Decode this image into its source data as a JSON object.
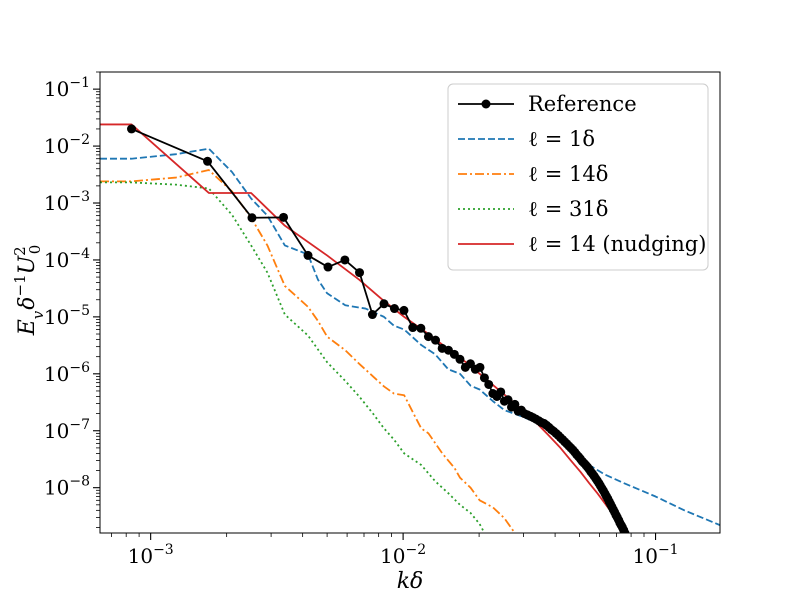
{
  "chart_data": {
    "type": "line",
    "title": "",
    "xlabel": "kδ",
    "ylabel": "E_v δ^{-1} U_0^2",
    "xscale": "log",
    "yscale": "log",
    "xlim": [
      0.00063,
      0.18
    ],
    "ylim": [
      1.6e-09,
      0.2
    ],
    "grid": false,
    "legend_position": "top-right",
    "x_ticks": [
      {
        "value": 0.001,
        "mant": "10",
        "exp": "−3"
      },
      {
        "value": 0.01,
        "mant": "10",
        "exp": "−2"
      },
      {
        "value": 0.1,
        "mant": "10",
        "exp": "−1"
      }
    ],
    "y_ticks": [
      {
        "value": 1e-08,
        "mant": "10",
        "exp": "−8"
      },
      {
        "value": 1e-07,
        "mant": "10",
        "exp": "−7"
      },
      {
        "value": 1e-06,
        "mant": "10",
        "exp": "−6"
      },
      {
        "value": 1e-05,
        "mant": "10",
        "exp": "−5"
      },
      {
        "value": 0.0001,
        "mant": "10",
        "exp": "−4"
      },
      {
        "value": 0.001,
        "mant": "10",
        "exp": "−3"
      },
      {
        "value": 0.01,
        "mant": "10",
        "exp": "−2"
      },
      {
        "value": 0.1,
        "mant": "10",
        "exp": "−1"
      }
    ],
    "series": [
      {
        "name": "Reference",
        "color": "#000000",
        "style": "solid-marker",
        "points": [
          [
            0.00084,
            0.02
          ],
          [
            0.00168,
            0.0054
          ],
          [
            0.00252,
            0.00055
          ],
          [
            0.00336,
            0.00056
          ],
          [
            0.0042,
            0.00012
          ],
          [
            0.00504,
            7.5e-05
          ],
          [
            0.00588,
            0.0001
          ],
          [
            0.00672,
            6e-05
          ],
          [
            0.00756,
            1.1e-05
          ],
          [
            0.0084,
            1.7e-05
          ],
          [
            0.00924,
            1.4e-05
          ],
          [
            0.01008,
            1.3e-05
          ],
          [
            0.01092,
            6.5e-06
          ],
          [
            0.01176,
            6.3e-06
          ],
          [
            0.0126,
            4.5e-06
          ],
          [
            0.01344,
            3.9e-06
          ],
          [
            0.01428,
            2.8e-06
          ],
          [
            0.01512,
            2.6e-06
          ],
          [
            0.01596,
            2.2e-06
          ],
          [
            0.0168,
            1.8e-06
          ],
          [
            0.01764,
            1.3e-06
          ],
          [
            0.01848,
            1.5e-06
          ],
          [
            0.01932,
            1.2e-06
          ],
          [
            0.02016,
            1.3e-06
          ],
          [
            0.021,
            8.5e-07
          ],
          [
            0.02184,
            6.5e-07
          ],
          [
            0.02268,
            4.5e-07
          ],
          [
            0.02352,
            4e-07
          ],
          [
            0.02436,
            4.8e-07
          ],
          [
            0.0252,
            3.3e-07
          ],
          [
            0.02604,
            3.5e-07
          ],
          [
            0.02688,
            2.6e-07
          ],
          [
            0.02772,
            2.9e-07
          ],
          [
            0.02856,
            2.2e-07
          ],
          [
            0.0294,
            2.3e-07
          ],
          [
            0.03024,
            2e-07
          ],
          [
            0.03108,
            1.9e-07
          ],
          [
            0.03192,
            1.8e-07
          ],
          [
            0.03276,
            1.7e-07
          ],
          [
            0.0336,
            1.6e-07
          ],
          [
            0.03444,
            1.5e-07
          ],
          [
            0.03528,
            1.4e-07
          ],
          [
            0.03612,
            1.35e-07
          ],
          [
            0.03696,
            1.25e-07
          ],
          [
            0.0378,
            1.15e-07
          ],
          [
            0.03864,
            1.05e-07
          ],
          [
            0.03948,
            9.8e-08
          ],
          [
            0.04032,
            9e-08
          ],
          [
            0.04116,
            8.3e-08
          ],
          [
            0.042,
            7.6e-08
          ],
          [
            0.04284,
            7e-08
          ],
          [
            0.04368,
            6.4e-08
          ],
          [
            0.04452,
            5.9e-08
          ],
          [
            0.04536,
            5.4e-08
          ],
          [
            0.0462,
            5e-08
          ],
          [
            0.04704,
            4.6e-08
          ],
          [
            0.04788,
            4.2e-08
          ],
          [
            0.04872,
            3.8e-08
          ],
          [
            0.04956,
            3.5e-08
          ],
          [
            0.0504,
            3.2e-08
          ],
          [
            0.05124,
            2.9e-08
          ],
          [
            0.05208,
            2.7e-08
          ],
          [
            0.05292,
            2.5e-08
          ],
          [
            0.05376,
            2.3e-08
          ],
          [
            0.0546,
            2.1e-08
          ],
          [
            0.05544,
            1.9e-08
          ],
          [
            0.05628,
            1.75e-08
          ],
          [
            0.05712,
            1.6e-08
          ],
          [
            0.05796,
            1.45e-08
          ],
          [
            0.0588,
            1.32e-08
          ],
          [
            0.05964,
            1.2e-08
          ],
          [
            0.06048,
            1.08e-08
          ],
          [
            0.06132,
            9.7e-09
          ],
          [
            0.06216,
            8.8e-09
          ],
          [
            0.063,
            7.9e-09
          ],
          [
            0.06384,
            7.1e-09
          ],
          [
            0.06468,
            6.4e-09
          ],
          [
            0.06552,
            5.7e-09
          ],
          [
            0.06636,
            5.1e-09
          ],
          [
            0.0672,
            4.6e-09
          ],
          [
            0.06804,
            4.1e-09
          ],
          [
            0.06888,
            3.7e-09
          ],
          [
            0.06972,
            3.3e-09
          ],
          [
            0.07056,
            3e-09
          ],
          [
            0.0714,
            2.7e-09
          ],
          [
            0.07224,
            2.4e-09
          ],
          [
            0.07308,
            2.2e-09
          ],
          [
            0.07392,
            2e-09
          ],
          [
            0.07476,
            1.8e-09
          ],
          [
            0.0756,
            1.6e-09
          ]
        ]
      },
      {
        "name": "ℓ = 1δ",
        "color": "#1f77b4",
        "style": "dashed",
        "points": [
          [
            0.00063,
            0.006
          ],
          [
            0.00084,
            0.006
          ],
          [
            0.00126,
            0.0072
          ],
          [
            0.0017,
            0.009
          ],
          [
            0.0021,
            0.0035
          ],
          [
            0.0025,
            0.0012
          ],
          [
            0.0029,
            0.0006
          ],
          [
            0.0034,
            0.00018
          ],
          [
            0.0042,
            0.000125
          ],
          [
            0.0046,
            4.5e-05
          ],
          [
            0.005,
            2.6e-05
          ],
          [
            0.0059,
            1.6e-05
          ],
          [
            0.0071,
            1.4e-05
          ],
          [
            0.0084,
            1e-05
          ],
          [
            0.0092,
            7e-06
          ],
          [
            0.0101,
            6e-06
          ],
          [
            0.0118,
            3.2e-06
          ],
          [
            0.0134,
            2.2e-06
          ],
          [
            0.0151,
            1.2e-06
          ],
          [
            0.0168,
            1e-06
          ],
          [
            0.0185,
            6.2e-07
          ],
          [
            0.0201,
            5.3e-07
          ],
          [
            0.0227,
            3.3e-07
          ],
          [
            0.0252,
            2.3e-07
          ],
          [
            0.0294,
            1.8e-07
          ],
          [
            0.0336,
            1.4e-07
          ],
          [
            0.0378,
            1e-07
          ],
          [
            0.042,
            7.5e-08
          ],
          [
            0.0462,
            5e-08
          ],
          [
            0.0546,
            2.5e-08
          ],
          [
            0.063,
            1.7e-08
          ],
          [
            0.075,
            1.2e-08
          ],
          [
            0.1,
            7e-09
          ],
          [
            0.13,
            4e-09
          ],
          [
            0.18,
            2.2e-09
          ]
        ]
      },
      {
        "name": "ℓ = 14δ",
        "color": "#ff7f0e",
        "style": "dashdot",
        "points": [
          [
            0.00063,
            0.0024
          ],
          [
            0.00084,
            0.0024
          ],
          [
            0.00126,
            0.0028
          ],
          [
            0.0017,
            0.0038
          ],
          [
            0.0021,
            0.0016
          ],
          [
            0.0025,
            0.00055
          ],
          [
            0.0029,
            0.00018
          ],
          [
            0.0034,
            3.5e-05
          ],
          [
            0.0042,
            1.5e-05
          ],
          [
            0.0046,
            8.5e-06
          ],
          [
            0.005,
            4.5e-06
          ],
          [
            0.0059,
            2.6e-06
          ],
          [
            0.0067,
            1.5e-06
          ],
          [
            0.0076,
            9e-07
          ],
          [
            0.0084,
            6e-07
          ],
          [
            0.0092,
            4.5e-07
          ],
          [
            0.0101,
            4.2e-07
          ],
          [
            0.011,
            2e-07
          ],
          [
            0.0118,
            1.1e-07
          ],
          [
            0.0126,
            9e-08
          ],
          [
            0.0143,
            4e-08
          ],
          [
            0.016,
            2.2e-08
          ],
          [
            0.0168,
            1.5e-08
          ],
          [
            0.0185,
            1e-08
          ],
          [
            0.0201,
            6e-09
          ],
          [
            0.0227,
            4.5e-09
          ],
          [
            0.0252,
            2.9e-09
          ],
          [
            0.0277,
            1.6e-09
          ]
        ]
      },
      {
        "name": "ℓ = 31δ",
        "color": "#2ca02c",
        "style": "dotted",
        "points": [
          [
            0.00063,
            0.0023
          ],
          [
            0.00084,
            0.0023
          ],
          [
            0.00126,
            0.0021
          ],
          [
            0.0017,
            0.0018
          ],
          [
            0.0021,
            0.00062
          ],
          [
            0.0025,
            0.00018
          ],
          [
            0.0029,
            6e-05
          ],
          [
            0.0034,
            1.1e-05
          ],
          [
            0.0042,
            4.7e-06
          ],
          [
            0.005,
            1.6e-06
          ],
          [
            0.0059,
            7.5e-07
          ],
          [
            0.0067,
            4e-07
          ],
          [
            0.0076,
            2e-07
          ],
          [
            0.0084,
            1.1e-07
          ],
          [
            0.0092,
            7e-08
          ],
          [
            0.0101,
            4e-08
          ],
          [
            0.0118,
            2.5e-08
          ],
          [
            0.0134,
            1.3e-08
          ],
          [
            0.0151,
            8e-09
          ],
          [
            0.0168,
            5e-09
          ],
          [
            0.0185,
            3.6e-09
          ],
          [
            0.0201,
            2.3e-09
          ],
          [
            0.021,
            1.6e-09
          ]
        ]
      },
      {
        "name": "ℓ = 14 (nudging)",
        "color": "#d62728",
        "style": "solid",
        "points": [
          [
            0.00063,
            0.024
          ],
          [
            0.00084,
            0.024
          ],
          [
            0.0017,
            0.0015
          ],
          [
            0.0025,
            0.0015
          ],
          [
            0.0034,
            0.0004
          ],
          [
            0.005,
            0.00012
          ],
          [
            0.0067,
            4.5e-05
          ],
          [
            0.0084,
            1.9e-05
          ],
          [
            0.0101,
            1e-05
          ],
          [
            0.0126,
            5e-06
          ],
          [
            0.0151,
            2.7e-06
          ],
          [
            0.0168,
            1.9e-06
          ],
          [
            0.0185,
            1.4e-06
          ],
          [
            0.0201,
            1e-06
          ],
          [
            0.0252,
            4.3e-07
          ],
          [
            0.0294,
            2.4e-07
          ],
          [
            0.0336,
            1.4e-07
          ],
          [
            0.0378,
            8.2e-08
          ],
          [
            0.042,
            5e-08
          ],
          [
            0.0462,
            3e-08
          ],
          [
            0.0504,
            1.9e-08
          ],
          [
            0.0546,
            1.2e-08
          ],
          [
            0.0588,
            8e-09
          ],
          [
            0.063,
            5.3e-09
          ],
          [
            0.0672,
            3.6e-09
          ],
          [
            0.0714,
            2.5e-09
          ],
          [
            0.0756,
            1.6e-09
          ]
        ]
      }
    ]
  }
}
